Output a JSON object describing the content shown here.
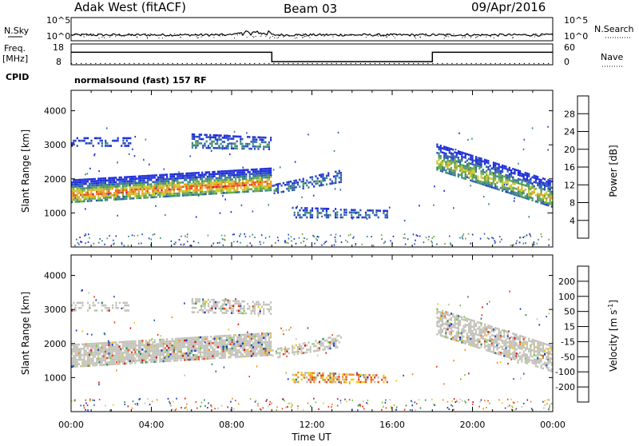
{
  "header": {
    "station": "Adak West (fitACF)",
    "beam": "Beam 03",
    "date": "09/Apr/2016"
  },
  "strip_nsky": {
    "left_label": "N.Sky",
    "right_label": "N.Search",
    "tick_top_left": "10^5",
    "tick_bottom_left": "10^0",
    "tick_top_right": "10^5",
    "tick_bottom_right": "10^0",
    "nsky_level": 0.2,
    "nsearch_level": 0.12
  },
  "strip_freq": {
    "left_label_line1": "Freq.",
    "left_label_line2": "[MHz]",
    "right_label": "Nave",
    "tick_top_left": "18",
    "tick_bottom_left": "8",
    "tick_top_right": "60",
    "tick_bottom_right": "0",
    "cpid_label": "CPID",
    "freq_segments": [
      {
        "start_h": 0,
        "end_h": 10,
        "level": 0.6
      },
      {
        "start_h": 10,
        "end_h": 18,
        "level": 0.15
      },
      {
        "start_h": 18,
        "end_h": 24,
        "level": 0.6
      }
    ],
    "nave_level": 0.08
  },
  "program": {
    "label": "normalsound (fast) 157 RF"
  },
  "chart_data": [
    {
      "type": "heatmap",
      "name": "power-panel",
      "xlabel": "",
      "ylabel": "Slant Range [km]",
      "xlim": [
        0,
        24
      ],
      "ylim": [
        0,
        4600
      ],
      "yticks": [
        "1000",
        "2000",
        "3000",
        "4000"
      ],
      "colorbar_label": "Power [dB]",
      "colorbar_ticks": [
        "4",
        "8",
        "12",
        "16",
        "20",
        "24",
        "28"
      ],
      "colors": [
        "#1e2dd8",
        "#2d5bb4",
        "#3c8a78",
        "#6ba844",
        "#c8c82a",
        "#ee9a1c",
        "#e8501e",
        "#d21414"
      ],
      "echo_regions": [
        {
          "t0": 0.0,
          "t1": 10.0,
          "r0_start": 1350,
          "r1_start": 2050,
          "r0_end": 1700,
          "r1_end": 2400,
          "intensity": 0.85
        },
        {
          "t0": 10.0,
          "t1": 13.5,
          "r0_start": 1600,
          "r1_start": 1900,
          "r0_end": 1950,
          "r1_end": 2350,
          "intensity": 0.3
        },
        {
          "t0": 11.0,
          "t1": 15.8,
          "r0_start": 900,
          "r1_start": 1250,
          "r0_end": 900,
          "r1_end": 1150,
          "intensity": 0.25
        },
        {
          "t0": 18.2,
          "t1": 24.0,
          "r0_start": 2300,
          "r1_start": 3100,
          "r0_end": 1200,
          "r1_end": 2000,
          "intensity": 0.6
        },
        {
          "t0": 0.0,
          "t1": 3.0,
          "r0_start": 3000,
          "r1_start": 3300,
          "r0_end": 3000,
          "r1_end": 3300,
          "intensity": 0.15
        },
        {
          "t0": 6.0,
          "t1": 10.0,
          "r0_start": 2950,
          "r1_start": 3400,
          "r0_end": 2900,
          "r1_end": 3300,
          "intensity": 0.3
        }
      ]
    },
    {
      "type": "heatmap",
      "name": "velocity-panel",
      "xlabel": "Time UT",
      "ylabel": "Slant Range [km]",
      "xlim": [
        0,
        24
      ],
      "ylim": [
        0,
        4600
      ],
      "xticks": [
        "00:00",
        "04:00",
        "08:00",
        "12:00",
        "16:00",
        "20:00",
        "00:00"
      ],
      "yticks": [
        "1000",
        "2000",
        "3000",
        "4000"
      ],
      "colorbar_label": "Velocity [m s^-1]",
      "colorbar_ticks": [
        "200",
        "100",
        "50",
        "15",
        "-15",
        "-50",
        "-100",
        "-200"
      ],
      "colors": [
        "#2030c0",
        "#2f5aa8",
        "#2e8a5a",
        "#7cc83a",
        "#c2c2ba",
        "#f0c81e",
        "#f08a1e",
        "#e84818",
        "#d81414"
      ],
      "ground_color": "#c2c2ba"
    }
  ]
}
